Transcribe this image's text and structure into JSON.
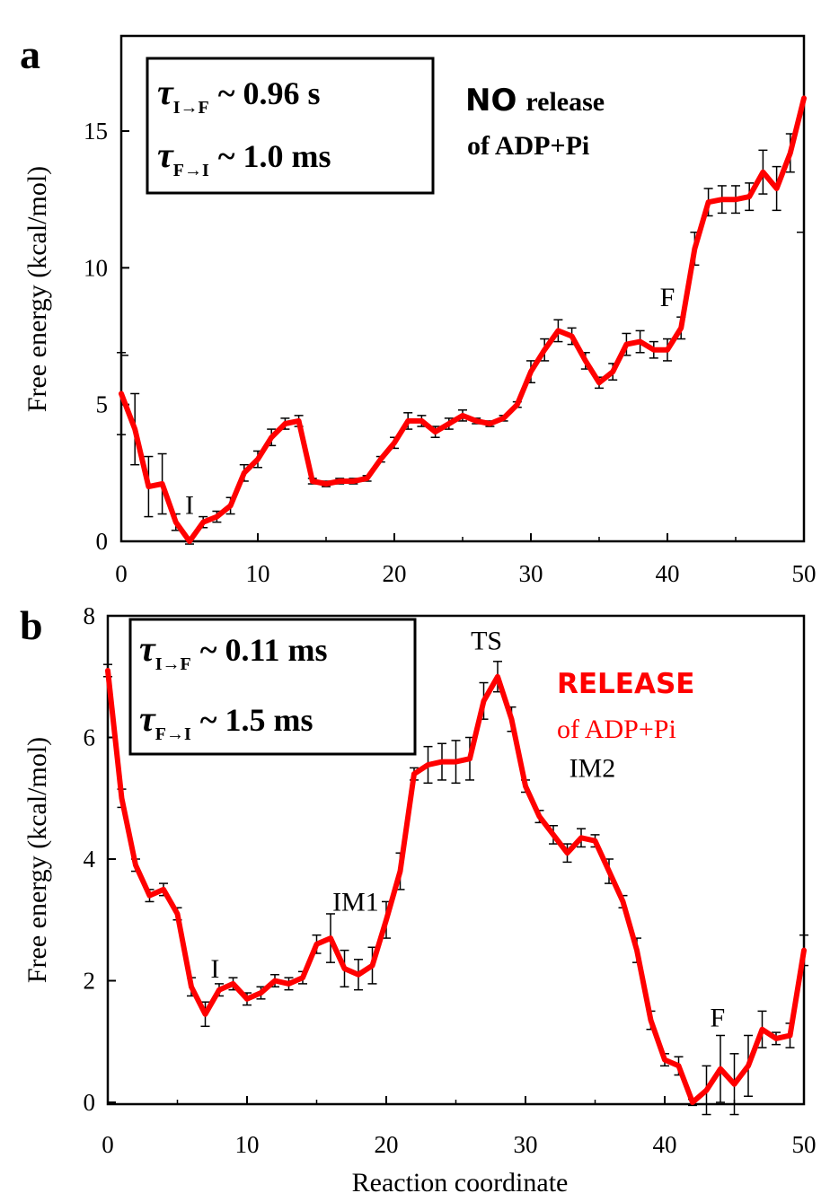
{
  "chart_data": [
    {
      "type": "line",
      "panel_label": "a",
      "xlabel": "",
      "ylabel": "Free energy (kcal/mol)",
      "xlim": [
        0,
        50
      ],
      "ylim": [
        0,
        17
      ],
      "x_ticks": [
        0,
        10,
        20,
        30,
        40,
        50
      ],
      "y_ticks": [
        0,
        5,
        10,
        15
      ],
      "tick_labels_x": [
        "0",
        "10",
        "20",
        "30",
        "40",
        "50"
      ],
      "tick_labels_y": [
        "0",
        "5",
        "10",
        "15"
      ],
      "color": "#ff0000",
      "x": [
        0,
        1,
        2,
        3,
        4,
        5,
        6,
        7,
        8,
        9,
        10,
        11,
        12,
        13,
        14,
        15,
        16,
        17,
        18,
        19,
        20,
        21,
        22,
        23,
        24,
        25,
        26,
        27,
        28,
        29,
        30,
        31,
        32,
        33,
        34,
        35,
        36,
        37,
        38,
        39,
        40,
        41,
        42,
        43,
        44,
        45,
        46,
        47,
        48,
        49,
        50
      ],
      "values": [
        5.4,
        4.1,
        2.0,
        2.1,
        0.7,
        0.0,
        0.7,
        0.9,
        1.3,
        2.5,
        3.0,
        3.8,
        4.3,
        4.4,
        2.2,
        2.1,
        2.2,
        2.2,
        2.3,
        3.0,
        3.6,
        4.4,
        4.4,
        4.0,
        4.3,
        4.6,
        4.4,
        4.3,
        4.5,
        5.0,
        6.2,
        7.0,
        7.7,
        7.5,
        6.6,
        5.8,
        6.2,
        7.2,
        7.3,
        7.0,
        7.0,
        7.8,
        10.7,
        12.4,
        12.5,
        12.5,
        12.6,
        13.5,
        12.9,
        14.2,
        16.2
      ],
      "errors": [
        1.5,
        1.3,
        1.1,
        1.1,
        0.3,
        0.1,
        0.2,
        0.2,
        0.3,
        0.3,
        0.3,
        0.3,
        0.2,
        0.2,
        0.1,
        0.1,
        0.1,
        0.1,
        0.1,
        0.1,
        0.2,
        0.3,
        0.2,
        0.2,
        0.2,
        0.2,
        0.1,
        0.1,
        0.1,
        0.1,
        0.4,
        0.4,
        0.4,
        0.3,
        0.3,
        0.2,
        0.3,
        0.4,
        0.4,
        0.3,
        0.4,
        0.4,
        0.6,
        0.5,
        0.5,
        0.5,
        0.5,
        0.8,
        0.8,
        0.7,
        0.0
      ],
      "edge_ticks": {
        "left_y": 6.8,
        "right_y": 11.3
      },
      "annotations": [
        {
          "text": "I",
          "x": 5,
          "y": 1.0
        },
        {
          "text": "F",
          "x": 40,
          "y": 8.6
        }
      ],
      "tau_box": [
        {
          "symbol": "τ",
          "subscript": "I→F",
          "value": "~ 0.96 s"
        },
        {
          "symbol": "τ",
          "subscript": "F→I",
          "value": "~ 1.0 ms"
        }
      ],
      "release_note": {
        "emphasis": "NO",
        "line1_rest": "release",
        "line2": "of ADP+Pi"
      }
    },
    {
      "type": "line",
      "panel_label": "b",
      "xlabel": "Reaction coordinate",
      "ylabel": "Free energy (kcal/mol)",
      "xlim": [
        0,
        50
      ],
      "ylim": [
        0,
        8
      ],
      "x_ticks": [
        0,
        10,
        20,
        30,
        40,
        50
      ],
      "y_ticks": [
        0,
        2,
        4,
        6,
        8
      ],
      "tick_labels_x": [
        "0",
        "10",
        "20",
        "30",
        "40",
        "50"
      ],
      "tick_labels_y": [
        "0",
        "2",
        "4",
        "6",
        "8"
      ],
      "color": "#ff0000",
      "x": [
        0,
        1,
        2,
        3,
        4,
        5,
        6,
        7,
        8,
        9,
        10,
        11,
        12,
        13,
        14,
        15,
        16,
        17,
        18,
        19,
        20,
        21,
        22,
        23,
        24,
        25,
        26,
        27,
        28,
        29,
        30,
        31,
        32,
        33,
        34,
        35,
        36,
        37,
        38,
        39,
        40,
        41,
        42,
        43,
        44,
        45,
        46,
        47,
        48,
        49,
        50
      ],
      "values": [
        7.1,
        5.0,
        3.9,
        3.4,
        3.5,
        3.1,
        1.9,
        1.45,
        1.85,
        1.95,
        1.7,
        1.8,
        2.0,
        1.95,
        2.05,
        2.6,
        2.7,
        2.2,
        2.1,
        2.25,
        3.0,
        3.8,
        5.4,
        5.55,
        5.6,
        5.6,
        5.65,
        6.6,
        7.0,
        6.3,
        5.2,
        4.7,
        4.4,
        4.1,
        4.35,
        4.3,
        3.8,
        3.3,
        2.5,
        1.35,
        0.7,
        0.6,
        0.0,
        0.2,
        0.55,
        0.3,
        0.6,
        1.2,
        1.05,
        1.1,
        2.5
      ],
      "errors": [
        0.1,
        0.15,
        0.1,
        0.1,
        0.1,
        0.1,
        0.15,
        0.2,
        0.1,
        0.1,
        0.1,
        0.1,
        0.1,
        0.1,
        0.1,
        0.15,
        0.4,
        0.3,
        0.25,
        0.3,
        0.3,
        0.3,
        0.1,
        0.3,
        0.3,
        0.35,
        0.35,
        0.3,
        0.25,
        0.2,
        0.1,
        0.1,
        0.15,
        0.15,
        0.15,
        0.1,
        0.2,
        0.1,
        0.2,
        0.15,
        0.1,
        0.15,
        0.05,
        0.4,
        0.55,
        0.5,
        0.5,
        0.3,
        0.1,
        0.2,
        0.25
      ],
      "annotations": [
        {
          "text": "I",
          "x": 7.7,
          "y": 2.05
        },
        {
          "text": "IM1",
          "x": 17.8,
          "y": 3.15
        },
        {
          "text": "TS",
          "x": 27.2,
          "y": 7.45
        },
        {
          "text": "IM2",
          "x": 34.8,
          "y": 5.35
        },
        {
          "text": "F",
          "x": 43.8,
          "y": 1.25
        }
      ],
      "tau_box": [
        {
          "symbol": "τ",
          "subscript": "I→F",
          "value": "~ 0.11 ms"
        },
        {
          "symbol": "τ",
          "subscript": "F→I",
          "value": "~ 1.5 ms"
        }
      ],
      "release_note": {
        "emphasis": "RELEASE",
        "line2": "of ADP+Pi"
      }
    }
  ]
}
